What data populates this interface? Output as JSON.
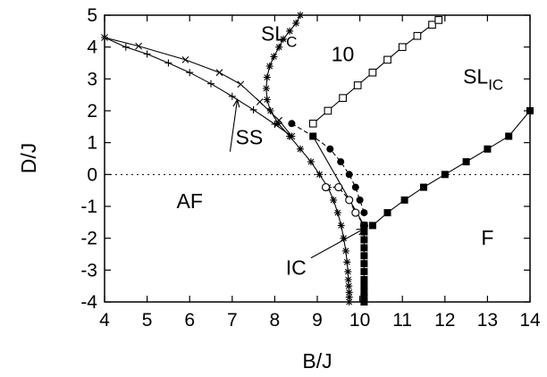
{
  "chart_data": {
    "type": "line",
    "title": "",
    "xlabel": "B/J",
    "ylabel": "D/J",
    "xlim": [
      4,
      14
    ],
    "ylim": [
      -4,
      5
    ],
    "x_ticks": [
      4,
      5,
      6,
      7,
      8,
      9,
      10,
      11,
      12,
      13,
      14
    ],
    "y_ticks": [
      5,
      4,
      3,
      2,
      1,
      0,
      -1,
      -2,
      -3,
      -4
    ],
    "grid": false,
    "reference_line": {
      "y": 0,
      "style": "dotted"
    },
    "region_labels": [
      {
        "id": "slc",
        "main": "SL",
        "sub": "C",
        "x": 8.1,
        "y": 4.2
      },
      {
        "id": "ten",
        "main": "10",
        "x": 9.6,
        "y": 3.55
      },
      {
        "id": "slic",
        "main": "SL",
        "sub": "IC",
        "x": 12.9,
        "y": 2.85
      },
      {
        "id": "ss",
        "main": "SS",
        "x": 7.4,
        "y": 0.95
      },
      {
        "id": "af",
        "main": "AF",
        "x": 6.0,
        "y": -1.05
      },
      {
        "id": "f",
        "main": "F",
        "x": 13.0,
        "y": -2.2
      },
      {
        "id": "ic",
        "main": "IC",
        "x": 8.5,
        "y": -3.15
      }
    ],
    "arrows": [
      {
        "id": "ss-arrow",
        "from": [
          6.95,
          0.72
        ],
        "to": [
          7.12,
          2.35
        ]
      },
      {
        "id": "ic-arrow",
        "from": [
          8.85,
          -2.62
        ],
        "to": [
          10.1,
          -1.7
        ]
      }
    ],
    "series": [
      {
        "id": "plus",
        "marker": "plus",
        "line": "solid",
        "x": [
          4.0,
          4.5,
          5.0,
          5.5,
          6.0,
          6.5,
          7.0,
          7.5,
          8.0,
          8.4
        ],
        "y": [
          4.3,
          4.0,
          3.78,
          3.5,
          3.2,
          2.85,
          2.45,
          2.03,
          1.58,
          1.2
        ]
      },
      {
        "id": "cross",
        "marker": "cross",
        "line": "solid",
        "x": [
          4.0,
          4.8,
          5.9,
          6.7,
          7.2,
          7.65,
          8.1,
          8.4
        ],
        "y": [
          4.3,
          4.03,
          3.6,
          3.2,
          2.83,
          2.28,
          1.7,
          1.2
        ]
      },
      {
        "id": "star-left",
        "marker": "star",
        "line": "solid",
        "x": [
          8.6,
          8.5,
          8.35,
          8.2,
          8.1,
          7.98,
          7.88,
          7.82,
          7.8,
          7.82,
          7.9,
          8.08,
          8.35,
          8.6,
          8.85,
          9.05,
          9.25,
          9.38,
          9.48,
          9.56,
          9.62,
          9.67,
          9.7,
          9.72,
          9.73,
          9.74,
          9.75,
          9.75,
          9.75
        ],
        "y": [
          5.0,
          4.75,
          4.5,
          4.25,
          4.0,
          3.7,
          3.4,
          3.05,
          2.7,
          2.35,
          2.0,
          1.6,
          1.2,
          0.8,
          0.4,
          0.0,
          -0.4,
          -0.8,
          -1.2,
          -1.6,
          -2.0,
          -2.4,
          -2.75,
          -3.05,
          -3.3,
          -3.5,
          -3.7,
          -3.85,
          -4.0
        ]
      },
      {
        "id": "filled-circle",
        "marker": "filled-circle",
        "line": "dashed",
        "x": [
          8.4,
          8.9,
          9.3,
          9.55,
          9.75,
          9.9,
          10.0,
          10.1
        ],
        "y": [
          1.6,
          1.2,
          0.8,
          0.4,
          0.0,
          -0.4,
          -0.8,
          -1.2
        ]
      },
      {
        "id": "open-circle",
        "marker": "open-circle",
        "line": "dashed",
        "x": [
          9.2,
          9.5,
          9.75,
          9.9,
          10.1
        ],
        "y": [
          -0.4,
          -0.4,
          -0.8,
          -1.2,
          -1.6
        ]
      },
      {
        "id": "open-square",
        "marker": "open-square",
        "line": "solid",
        "x": [
          8.9,
          9.25,
          9.6,
          9.95,
          10.3,
          10.65,
          11.0,
          11.35,
          11.7,
          11.85
        ],
        "y": [
          1.6,
          2.0,
          2.4,
          2.8,
          3.2,
          3.6,
          4.0,
          4.35,
          4.7,
          4.85
        ]
      },
      {
        "id": "filled-square-left",
        "marker": "filled-square",
        "line": "solid",
        "x": [
          8.9,
          10.1
        ],
        "y": [
          1.2,
          -1.6
        ]
      },
      {
        "id": "filled-square-vertical",
        "marker": "filled-square",
        "line": "solid",
        "x": [
          10.1,
          10.1,
          10.1,
          10.1,
          10.1,
          10.1,
          10.1,
          10.1,
          10.1,
          10.1,
          10.1,
          10.1
        ],
        "y": [
          -1.6,
          -1.8,
          -2.05,
          -2.3,
          -2.55,
          -2.8,
          -3.05,
          -3.3,
          -3.5,
          -3.7,
          -3.85,
          -4.0
        ]
      },
      {
        "id": "filled-square-right",
        "marker": "filled-square",
        "line": "solid",
        "x": [
          10.3,
          10.65,
          11.05,
          11.5,
          12.0,
          12.5,
          13.0,
          13.5,
          14.0
        ],
        "y": [
          -1.6,
          -1.2,
          -0.8,
          -0.4,
          0.0,
          0.4,
          0.8,
          1.2,
          2.0
        ]
      }
    ]
  }
}
